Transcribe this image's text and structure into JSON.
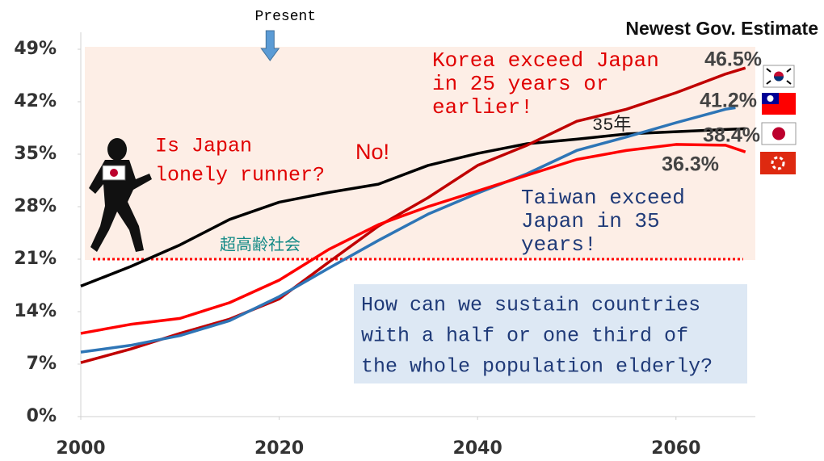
{
  "chart_data": {
    "type": "line",
    "xlim": [
      2000,
      2068
    ],
    "ylim": [
      0,
      49
    ],
    "xticks": [
      2000,
      2020,
      2040,
      2060
    ],
    "yticks": [
      {
        "value": 0,
        "label": "0%"
      },
      {
        "value": 7,
        "label": "7%"
      },
      {
        "value": 14,
        "label": "14%"
      },
      {
        "value": 21,
        "label": "21%"
      },
      {
        "value": 28,
        "label": "28%"
      },
      {
        "value": 35,
        "label": "35%"
      },
      {
        "value": 42,
        "label": "42%"
      },
      {
        "value": 49,
        "label": "49%"
      }
    ],
    "series": [
      {
        "color": "#000000",
        "x": [
          2000,
          2005,
          2010,
          2015,
          2020,
          2025,
          2030,
          2035,
          2040,
          2045,
          2050,
          2055,
          2060,
          2065,
          2067
        ],
        "values": [
          17.4,
          20.0,
          22.9,
          26.3,
          28.6,
          29.9,
          31.0,
          33.5,
          35.1,
          36.4,
          37.0,
          37.7,
          38.0,
          38.3,
          38.4
        ],
        "value_labels": [
          null,
          null,
          null,
          null,
          null,
          null,
          null,
          null,
          null,
          null,
          null,
          null,
          null,
          null,
          "38.4%"
        ]
      },
      {
        "color": "#c00000",
        "x": [
          2000,
          2005,
          2010,
          2015,
          2020,
          2025,
          2030,
          2035,
          2040,
          2045,
          2050,
          2055,
          2060,
          2065,
          2067
        ],
        "values": [
          7.2,
          9.0,
          11.1,
          13.0,
          15.7,
          20.6,
          25.4,
          29.2,
          33.5,
          36.2,
          39.4,
          41.0,
          43.2,
          45.7,
          46.5
        ],
        "value_labels": [
          null,
          null,
          null,
          null,
          null,
          null,
          null,
          null,
          null,
          null,
          null,
          null,
          null,
          null,
          "46.5%"
        ]
      },
      {
        "color": "#2e75b6",
        "x": [
          2000,
          2005,
          2010,
          2015,
          2020,
          2025,
          2030,
          2035,
          2040,
          2045,
          2050,
          2055,
          2060,
          2065,
          2066
        ],
        "values": [
          8.6,
          9.5,
          10.8,
          12.8,
          16.0,
          19.8,
          23.5,
          27.0,
          29.8,
          32.4,
          35.5,
          37.3,
          39.2,
          41.0,
          41.2
        ],
        "value_labels": [
          null,
          null,
          null,
          null,
          null,
          null,
          null,
          null,
          null,
          null,
          null,
          null,
          null,
          null,
          "41.2%"
        ]
      },
      {
        "color": "#ff0000",
        "x": [
          2000,
          2005,
          2010,
          2015,
          2020,
          2025,
          2030,
          2035,
          2040,
          2045,
          2050,
          2055,
          2060,
          2065,
          2067
        ],
        "values": [
          11.1,
          12.3,
          13.1,
          15.2,
          18.2,
          22.3,
          25.6,
          28.0,
          30.1,
          32.2,
          34.3,
          35.5,
          36.3,
          36.2,
          35.3
        ],
        "value_labels": [
          null,
          null,
          null,
          null,
          null,
          null,
          null,
          null,
          null,
          null,
          null,
          null,
          "36.3%",
          null,
          null
        ]
      }
    ],
    "reference_line": {
      "value": 21,
      "label": "超高齢社会",
      "color": "#ff0000"
    },
    "present": {
      "value": 2019,
      "label": "Present"
    },
    "legend_title": "Newest Gov. Estimate",
    "annotations": [
      {
        "lines": [
          "Korea exceed Japan",
          "in 25 years or",
          "earlier!"
        ],
        "color": "#e00000"
      },
      {
        "lines": [
          "Is Japan",
          "lonely runner?"
        ],
        "color": "#e00000"
      },
      {
        "lines": [
          "No!"
        ],
        "color": "#e00000"
      },
      {
        "lines": [
          "Taiwan exceed",
          "Japan in 35",
          "years!"
        ],
        "color": "#1f3a78"
      },
      {
        "lines": [
          "How can we sustain countries",
          "with a half or one third of",
          "the whole population elderly?"
        ],
        "color": "#1f3a78"
      },
      {
        "lines": [
          "35年"
        ],
        "color": "#222222"
      }
    ]
  }
}
